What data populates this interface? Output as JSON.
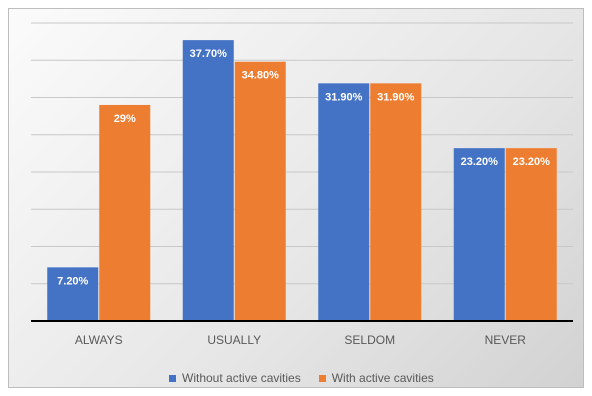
{
  "chart_data": {
    "type": "bar",
    "categories": [
      "ALWAYS",
      "USUALLY",
      "SELDOM",
      "NEVER"
    ],
    "series": [
      {
        "name": "Without active cavities",
        "values": [
          7.2,
          37.7,
          31.9,
          23.2
        ],
        "labels": [
          "7.20%",
          "37.70%",
          "31.90%",
          "23.20%"
        ],
        "color": "#4472c4"
      },
      {
        "name": "With active cavities",
        "values": [
          29,
          34.8,
          31.9,
          23.2
        ],
        "labels": [
          "29%",
          "34.80%",
          "31.90%",
          "23.20%"
        ],
        "color": "#ed7d31"
      }
    ],
    "ylim": [
      0,
      40
    ],
    "grid": true,
    "legend_position": "bottom"
  }
}
